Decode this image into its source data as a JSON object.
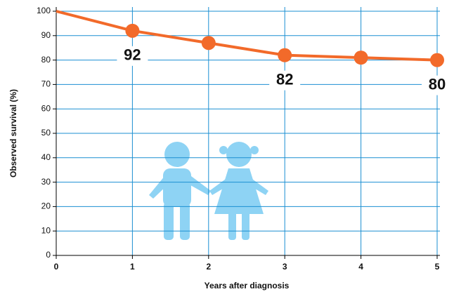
{
  "chart_data": {
    "type": "line",
    "x_label": "Years after diagnosis",
    "y_label": "Observed survival (%)",
    "x": [
      0,
      1,
      2,
      3,
      4,
      5
    ],
    "series": [
      {
        "color": "#f26a2a",
        "values": [
          100,
          92,
          87,
          82,
          81,
          80
        ],
        "value_labels": [
          null,
          "92",
          null,
          "82",
          null,
          "80"
        ]
      }
    ],
    "xlim": [
      0,
      5
    ],
    "xticks": [
      0,
      1,
      2,
      3,
      4,
      5
    ],
    "ylim": [
      0,
      100
    ],
    "yticks": [
      0,
      10,
      20,
      30,
      40,
      50,
      60,
      70,
      80,
      90,
      100
    ],
    "grid": true,
    "grid_color": "#1b8fd2"
  }
}
